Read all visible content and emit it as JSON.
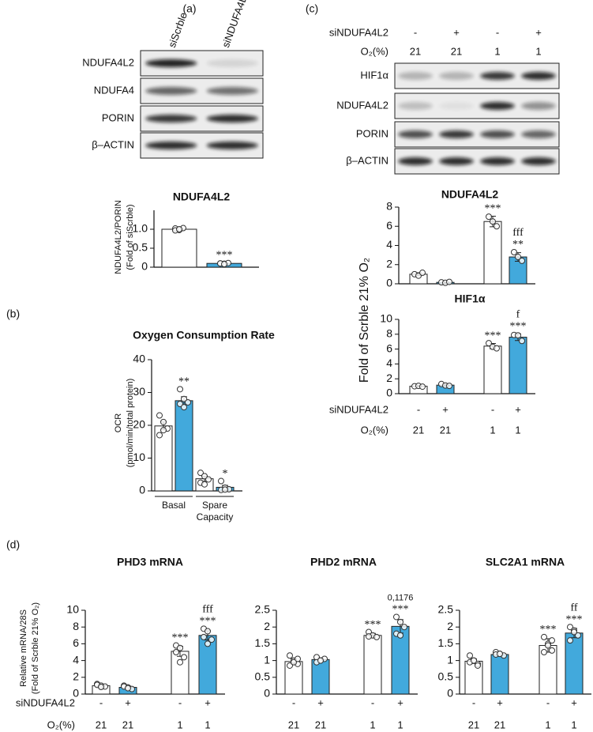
{
  "panel_labels": [
    "(a)",
    "(b)",
    "(c)",
    "(d)"
  ],
  "blot_a": {
    "lanes": [
      "siScrble",
      "siNDUFA4L2"
    ],
    "rows": [
      "NDUFA4L2",
      "NDUFA4",
      "PORIN",
      "β–ACTIN"
    ]
  },
  "blot_c": {
    "conditions": [
      {
        "name": "siNDUFA4L2",
        "values": [
          "-",
          "+",
          "-",
          "+"
        ]
      },
      {
        "name": "O₂(%)",
        "values": [
          "21",
          "21",
          "1",
          "1"
        ]
      }
    ],
    "rows": [
      "HIF1α",
      "NDUFA4L2",
      "PORIN",
      "β–ACTIN"
    ]
  },
  "panel_c_ylabel": "Fold of Scrble 21% O₂",
  "chart_data": [
    {
      "type": "bar",
      "title": "NDUFA4L2",
      "ylabel": [
        "NDUFA4L2/PORIN",
        "(Fold of siScrble)"
      ],
      "values": [
        1.0,
        0.1
      ],
      "errors": [
        0.04,
        0.02
      ],
      "colors": [
        "#ffffff",
        "#42a9dc"
      ],
      "points": [
        [
          1.02,
          0.98,
          1.03,
          0.97,
          1.0
        ],
        [
          0.1,
          0.09,
          0.11,
          0.1,
          0.08
        ]
      ],
      "annotations": [
        null,
        [
          "***"
        ]
      ],
      "ylim": [
        0,
        1.5
      ],
      "yticks": [
        0,
        0.5,
        {
          "value": 1,
          "label": "1.0"
        }
      ]
    },
    {
      "type": "bar",
      "title": "Oxygen Consumption Rate",
      "ylabel": [
        "OCR",
        "(pmol/min/total protein)"
      ],
      "categories": [
        "Basal",
        "Spare Capacity"
      ],
      "series": [
        {
          "color": "#ffffff",
          "values": [
            19.8,
            3.7
          ],
          "errors": [
            1.2,
            0.8
          ],
          "points": [
            [
              23,
              21,
              19,
              17,
              18.5
            ],
            [
              5.5,
              4.5,
              3.5,
              2.5,
              2
            ]
          ]
        },
        {
          "color": "#42a9dc",
          "values": [
            27.5,
            1.1
          ],
          "errors": [
            1.2,
            0.6
          ],
          "points": [
            [
              31,
              28,
              27,
              26.5,
              25.5
            ],
            [
              3,
              1,
              0.5,
              0.3,
              0.4
            ]
          ],
          "annotations": [
            "**",
            "*"
          ]
        }
      ],
      "ylim": [
        0,
        40
      ],
      "yticks": [
        0,
        10,
        20,
        30,
        40
      ]
    },
    {
      "type": "bar",
      "title": "NDUFA4L2",
      "values": [
        1.0,
        0.15,
        6.5,
        2.8
      ],
      "errors": [
        0.15,
        0.05,
        0.55,
        0.45
      ],
      "colors": [
        "#ffffff",
        "#42a9dc",
        "#ffffff",
        "#42a9dc"
      ],
      "points": [
        [
          1.0,
          0.85,
          1.15
        ],
        [
          0.15,
          0.1,
          0.2
        ],
        [
          7.0,
          6.5,
          6.0
        ],
        [
          3.3,
          2.8,
          2.4
        ]
      ],
      "annotations": [
        null,
        null,
        [
          "***"
        ],
        [
          "fff",
          "**"
        ]
      ],
      "ylim": [
        0,
        8
      ],
      "yticks": [
        0,
        2,
        4,
        6,
        8
      ]
    },
    {
      "type": "bar",
      "title": "HIF1α",
      "values": [
        1.0,
        1.15,
        6.4,
        7.6
      ],
      "errors": [
        0.1,
        0.15,
        0.35,
        0.45
      ],
      "colors": [
        "#ffffff",
        "#42a9dc",
        "#ffffff",
        "#42a9dc"
      ],
      "points": [
        [
          1.0,
          1.05,
          0.95
        ],
        [
          1.3,
          1.1,
          1.05
        ],
        [
          6.8,
          6.3,
          6.1
        ],
        [
          7.9,
          7.85,
          7.1
        ]
      ],
      "annotations": [
        null,
        null,
        [
          "***"
        ],
        [
          "f",
          "***"
        ]
      ],
      "ylim": [
        0,
        10
      ],
      "yticks": [
        0,
        2,
        4,
        6,
        8,
        10
      ],
      "conditions": [
        {
          "name": "siNDUFA4L2",
          "values": [
            "-",
            "+",
            "-",
            "+"
          ]
        },
        {
          "name": "O₂(%)",
          "values": [
            "21",
            "21",
            "1",
            "1"
          ]
        }
      ]
    },
    {
      "type": "bar",
      "title": "PHD3 mRNA",
      "ylabel": [
        "Relative mRNA/28S",
        "(Fold of Scrble 21% O₂)"
      ],
      "values": [
        1.0,
        0.8,
        5.1,
        7.0
      ],
      "errors": [
        0.12,
        0.15,
        0.6,
        0.55
      ],
      "colors": [
        "#ffffff",
        "#42a9dc",
        "#ffffff",
        "#42a9dc"
      ],
      "points": [
        [
          1.2,
          1.0,
          0.9,
          1.1,
          0.85
        ],
        [
          1.0,
          0.8,
          0.6,
          0.9,
          0.7
        ],
        [
          5.8,
          5.5,
          4.4,
          5.0,
          3.8
        ],
        [
          7.8,
          7.5,
          6.5,
          6.8,
          6.0
        ]
      ],
      "annotations": [
        null,
        null,
        [
          "***"
        ],
        [
          "fff",
          "***"
        ]
      ],
      "ylim": [
        0,
        10
      ],
      "yticks": [
        0,
        2,
        4,
        6,
        8,
        10
      ],
      "conditions": [
        {
          "name": "siNDUFA4L2",
          "values": [
            "-",
            "+",
            "-",
            "+"
          ]
        },
        {
          "name": "O₂(%)",
          "values": [
            "21",
            "21",
            "1",
            "1"
          ]
        }
      ]
    },
    {
      "type": "bar",
      "title": "PHD2 mRNA",
      "values": [
        0.97,
        1.03,
        1.75,
        2.02
      ],
      "errors": [
        0.08,
        0.05,
        0.06,
        0.2
      ],
      "colors": [
        "#ffffff",
        "#42a9dc",
        "#ffffff",
        "#42a9dc"
      ],
      "points": [
        [
          1.15,
          1.0,
          0.9,
          0.85,
          0.95,
          1.05
        ],
        [
          1.1,
          1.0,
          1.05,
          0.95,
          1.0
        ],
        [
          1.85,
          1.75,
          1.7,
          1.72
        ],
        [
          2.3,
          2.15,
          2.0,
          1.8,
          1.75
        ]
      ],
      "annotations": [
        null,
        null,
        [
          "***"
        ],
        [
          "0,1176",
          "***"
        ]
      ],
      "ylim": [
        0,
        2.5
      ],
      "yticks": [
        0,
        0.5,
        1,
        1.5,
        2,
        2.5
      ],
      "conditions": [
        {
          "values": [
            "-",
            "+",
            "-",
            "+"
          ]
        },
        {
          "values": [
            "21",
            "21",
            "1",
            "1"
          ]
        }
      ]
    },
    {
      "type": "bar",
      "title": "SLC2A1 mRNA",
      "values": [
        0.98,
        1.18,
        1.45,
        1.82
      ],
      "errors": [
        0.07,
        0.04,
        0.2,
        0.14
      ],
      "colors": [
        "#ffffff",
        "#42a9dc",
        "#ffffff",
        "#42a9dc"
      ],
      "points": [
        [
          1.15,
          1.0,
          0.9,
          0.95,
          1.0,
          0.85
        ],
        [
          1.25,
          1.2,
          1.15,
          1.18,
          1.2
        ],
        [
          1.7,
          1.5,
          1.3,
          1.25,
          1.45,
          1.6
        ],
        [
          2.0,
          1.9,
          1.75,
          1.6,
          1.85
        ]
      ],
      "annotations": [
        null,
        null,
        [
          "***"
        ],
        [
          "ff",
          "***"
        ]
      ],
      "ylim": [
        0,
        2.5
      ],
      "yticks": [
        0,
        0.5,
        1,
        1.5,
        2,
        2.5
      ],
      "conditions": [
        {
          "values": [
            "-",
            "+",
            "-",
            "+"
          ]
        },
        {
          "values": [
            "21",
            "21",
            "1",
            "1"
          ]
        }
      ]
    }
  ]
}
